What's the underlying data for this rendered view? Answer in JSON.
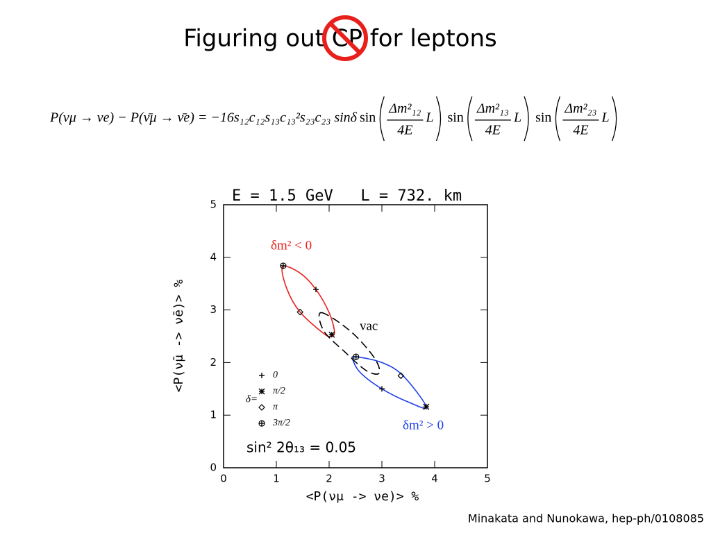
{
  "title": "Figuring out CP for leptons",
  "equation": {
    "lhs": "P(νμ → νe) − P(ν̄μ → ν̄e) = −16s₁₂c₁₂s₁₃c₁₃²s₂₃c₂₃ sinδ",
    "factors": [
      {
        "func": "sin",
        "numerator": "Δm²₁₂",
        "denominator": "4E",
        "variable": "L"
      },
      {
        "func": "sin",
        "numerator": "Δm²₁₃",
        "denominator": "4E",
        "variable": "L"
      },
      {
        "func": "sin",
        "numerator": "Δm²₂₃",
        "denominator": "4E",
        "variable": "L"
      }
    ]
  },
  "chart_data": {
    "type": "scatter",
    "title": "E = 1.5 GeV   L = 732. km",
    "x_label": "<P(νμ -> νe)> %",
    "y_label": "<P(ν̄μ -> ν̄e)> %",
    "xlim": [
      0,
      5
    ],
    "ylim": [
      0,
      5
    ],
    "xticks": [
      0,
      1,
      2,
      3,
      4,
      5
    ],
    "yticks": [
      0,
      1,
      2,
      3,
      4,
      5
    ],
    "legend_title": "δ=",
    "series": [
      {
        "name": "0",
        "marker": "plus",
        "color": "#000000",
        "x": [
          1.75,
          3.0
        ],
        "y": [
          3.39,
          1.5
        ]
      },
      {
        "name": "π/2",
        "marker": "star",
        "color": "#000000",
        "x": [
          2.05,
          3.84
        ],
        "y": [
          2.53,
          1.16
        ]
      },
      {
        "name": "π",
        "marker": "diamond",
        "color": "#000000",
        "x": [
          1.45,
          3.36
        ],
        "y": [
          2.96,
          1.75
        ]
      },
      {
        "name": "3π/2",
        "marker": "circleplus",
        "color": "#000000",
        "x": [
          1.13,
          2.51
        ],
        "y": [
          3.84,
          2.11
        ]
      }
    ],
    "curves": [
      {
        "name": "δm² < 0",
        "color": "#e8201c",
        "dashed": false,
        "x": [
          1.12,
          1.45,
          1.75,
          2.0,
          2.1,
          2.05,
          1.9,
          1.45,
          1.2
        ],
        "y": [
          3.82,
          3.7,
          3.39,
          2.95,
          2.6,
          2.5,
          2.55,
          2.96,
          3.4
        ]
      },
      {
        "name": "δm² > 0",
        "color": "#1c3ee8",
        "dashed": false,
        "x": [
          2.5,
          3.0,
          3.4,
          3.84,
          3.5,
          3.0,
          2.6,
          2.45
        ],
        "y": [
          2.11,
          2.0,
          1.75,
          1.16,
          1.25,
          1.5,
          1.8,
          2.05
        ]
      },
      {
        "name": "vac",
        "color": "#000000",
        "dashed": true,
        "x": [
          1.85,
          2.4,
          2.85,
          2.95,
          2.7,
          2.3,
          1.9
        ],
        "y": [
          2.95,
          2.6,
          2.1,
          1.8,
          1.85,
          2.2,
          2.6
        ]
      }
    ],
    "annotation": "sin² 2θ₁₃ = 0.05"
  },
  "citation": "Minakata and Nunokawa, hep-ph/0108085"
}
